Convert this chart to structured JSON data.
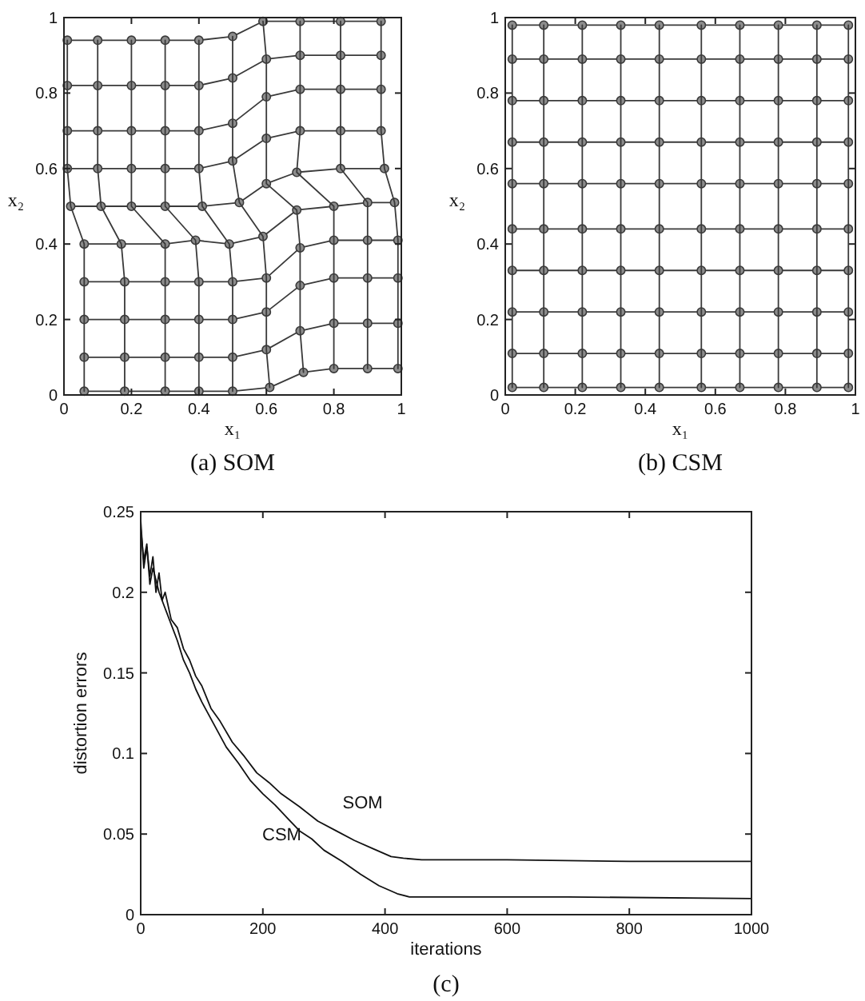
{
  "chart_data": [
    {
      "type": "line",
      "title": "(a) SOM",
      "xlabel": "x₁",
      "ylabel": "x₂",
      "xlim": [
        0,
        1
      ],
      "ylim": [
        0,
        1
      ],
      "xticks": [
        0,
        0.2,
        0.4,
        0.6,
        0.8,
        1
      ],
      "yticks": [
        0,
        0.2,
        0.4,
        0.6,
        0.8,
        1
      ],
      "grid": false,
      "series": [
        {
          "color": "#3a3a3a",
          "marker": "circle",
          "x": [
            0.06,
            0.18,
            0.3,
            0.4,
            0.5,
            0.61,
            0.71,
            0.8,
            0.9,
            0.99
          ],
          "values": [
            0.01,
            0.01,
            0.01,
            0.01,
            0.01,
            0.02,
            0.06,
            0.07,
            0.07,
            0.07
          ]
        },
        {
          "color": "#3a3a3a",
          "marker": "circle",
          "x": [
            0.06,
            0.18,
            0.3,
            0.4,
            0.5,
            0.6,
            0.7,
            0.8,
            0.9,
            0.99
          ],
          "values": [
            0.1,
            0.1,
            0.1,
            0.1,
            0.1,
            0.12,
            0.17,
            0.19,
            0.19,
            0.19
          ]
        },
        {
          "color": "#3a3a3a",
          "marker": "circle",
          "x": [
            0.06,
            0.18,
            0.3,
            0.4,
            0.5,
            0.6,
            0.7,
            0.8,
            0.9,
            0.99
          ],
          "values": [
            0.2,
            0.2,
            0.2,
            0.2,
            0.2,
            0.22,
            0.29,
            0.31,
            0.31,
            0.31
          ]
        },
        {
          "color": "#3a3a3a",
          "marker": "circle",
          "x": [
            0.06,
            0.18,
            0.3,
            0.4,
            0.5,
            0.6,
            0.7,
            0.8,
            0.9,
            0.99
          ],
          "values": [
            0.3,
            0.3,
            0.3,
            0.3,
            0.3,
            0.31,
            0.39,
            0.41,
            0.41,
            0.41
          ]
        },
        {
          "color": "#3a3a3a",
          "marker": "circle",
          "x": [
            0.06,
            0.17,
            0.3,
            0.39,
            0.49,
            0.59,
            0.69,
            0.8,
            0.9,
            0.98
          ],
          "values": [
            0.4,
            0.4,
            0.4,
            0.41,
            0.4,
            0.42,
            0.49,
            0.5,
            0.51,
            0.51
          ]
        },
        {
          "color": "#3a3a3a",
          "marker": "circle",
          "x": [
            0.02,
            0.11,
            0.2,
            0.3,
            0.41,
            0.52,
            0.6,
            0.69,
            0.82,
            0.95
          ],
          "values": [
            0.5,
            0.5,
            0.5,
            0.5,
            0.5,
            0.51,
            0.56,
            0.59,
            0.6,
            0.6
          ]
        },
        {
          "color": "#3a3a3a",
          "marker": "circle",
          "x": [
            0.01,
            0.1,
            0.2,
            0.3,
            0.4,
            0.5,
            0.6,
            0.7,
            0.82,
            0.94
          ],
          "values": [
            0.6,
            0.6,
            0.6,
            0.6,
            0.6,
            0.62,
            0.68,
            0.7,
            0.7,
            0.7
          ]
        },
        {
          "color": "#3a3a3a",
          "marker": "circle",
          "x": [
            0.01,
            0.1,
            0.2,
            0.3,
            0.4,
            0.5,
            0.6,
            0.7,
            0.82,
            0.94
          ],
          "values": [
            0.7,
            0.7,
            0.7,
            0.7,
            0.7,
            0.72,
            0.79,
            0.81,
            0.81,
            0.81
          ]
        },
        {
          "color": "#3a3a3a",
          "marker": "circle",
          "x": [
            0.01,
            0.1,
            0.2,
            0.3,
            0.4,
            0.5,
            0.6,
            0.7,
            0.82,
            0.94
          ],
          "values": [
            0.82,
            0.82,
            0.82,
            0.82,
            0.82,
            0.84,
            0.89,
            0.9,
            0.9,
            0.9
          ]
        },
        {
          "color": "#3a3a3a",
          "marker": "circle",
          "x": [
            0.01,
            0.1,
            0.2,
            0.3,
            0.4,
            0.5,
            0.59,
            0.7,
            0.82,
            0.94
          ],
          "values": [
            0.94,
            0.94,
            0.94,
            0.94,
            0.94,
            0.95,
            0.99,
            0.99,
            0.99,
            0.99
          ]
        },
        {
          "color": "#3a3a3a",
          "marker": "none",
          "x": [
            0.06,
            0.06,
            0.06,
            0.06,
            0.06,
            0.02,
            0.01,
            0.01,
            0.01,
            0.01
          ],
          "values": [
            0.01,
            0.1,
            0.2,
            0.3,
            0.4,
            0.5,
            0.6,
            0.7,
            0.82,
            0.94
          ]
        },
        {
          "color": "#3a3a3a",
          "marker": "none",
          "x": [
            0.18,
            0.18,
            0.18,
            0.18,
            0.17,
            0.11,
            0.1,
            0.1,
            0.1,
            0.1
          ],
          "values": [
            0.01,
            0.1,
            0.2,
            0.3,
            0.4,
            0.5,
            0.6,
            0.7,
            0.82,
            0.94
          ]
        },
        {
          "color": "#3a3a3a",
          "marker": "none",
          "x": [
            0.3,
            0.3,
            0.3,
            0.3,
            0.3,
            0.2,
            0.2,
            0.2,
            0.2,
            0.2
          ],
          "values": [
            0.01,
            0.1,
            0.2,
            0.3,
            0.4,
            0.5,
            0.6,
            0.7,
            0.82,
            0.94
          ]
        },
        {
          "color": "#3a3a3a",
          "marker": "none",
          "x": [
            0.4,
            0.4,
            0.4,
            0.4,
            0.39,
            0.3,
            0.3,
            0.3,
            0.3,
            0.3
          ],
          "values": [
            0.01,
            0.1,
            0.2,
            0.3,
            0.41,
            0.5,
            0.6,
            0.7,
            0.82,
            0.94
          ]
        },
        {
          "color": "#3a3a3a",
          "marker": "none",
          "x": [
            0.5,
            0.5,
            0.5,
            0.5,
            0.49,
            0.41,
            0.4,
            0.4,
            0.4,
            0.4
          ],
          "values": [
            0.01,
            0.1,
            0.2,
            0.3,
            0.4,
            0.5,
            0.6,
            0.7,
            0.82,
            0.94
          ]
        },
        {
          "color": "#3a3a3a",
          "marker": "none",
          "x": [
            0.61,
            0.6,
            0.6,
            0.6,
            0.59,
            0.52,
            0.5,
            0.5,
            0.5,
            0.5
          ],
          "values": [
            0.02,
            0.12,
            0.22,
            0.31,
            0.42,
            0.51,
            0.62,
            0.72,
            0.84,
            0.95
          ]
        },
        {
          "color": "#3a3a3a",
          "marker": "none",
          "x": [
            0.71,
            0.7,
            0.7,
            0.7,
            0.69,
            0.6,
            0.6,
            0.6,
            0.6,
            0.59
          ],
          "values": [
            0.06,
            0.17,
            0.29,
            0.39,
            0.49,
            0.56,
            0.68,
            0.79,
            0.89,
            0.99
          ]
        },
        {
          "color": "#3a3a3a",
          "marker": "none",
          "x": [
            0.8,
            0.8,
            0.8,
            0.8,
            0.8,
            0.69,
            0.7,
            0.7,
            0.7,
            0.7
          ],
          "values": [
            0.07,
            0.19,
            0.31,
            0.41,
            0.5,
            0.59,
            0.7,
            0.81,
            0.9,
            0.99
          ]
        },
        {
          "color": "#3a3a3a",
          "marker": "none",
          "x": [
            0.9,
            0.9,
            0.9,
            0.9,
            0.9,
            0.82,
            0.82,
            0.82,
            0.82,
            0.82
          ],
          "values": [
            0.07,
            0.19,
            0.31,
            0.41,
            0.51,
            0.6,
            0.7,
            0.81,
            0.9,
            0.99
          ]
        },
        {
          "color": "#3a3a3a",
          "marker": "none",
          "x": [
            0.99,
            0.99,
            0.99,
            0.99,
            0.98,
            0.95,
            0.94,
            0.94,
            0.94,
            0.94
          ],
          "values": [
            0.07,
            0.19,
            0.31,
            0.41,
            0.51,
            0.6,
            0.7,
            0.81,
            0.9,
            0.99
          ]
        }
      ]
    },
    {
      "type": "line",
      "title": "(b) CSM",
      "xlabel": "x₁",
      "ylabel": "x₂",
      "xlim": [
        0,
        1
      ],
      "ylim": [
        0,
        1
      ],
      "xticks": [
        0,
        0.2,
        0.4,
        0.6,
        0.8,
        1
      ],
      "yticks": [
        0,
        0.2,
        0.4,
        0.6,
        0.8,
        1
      ],
      "grid": false,
      "series": [
        {
          "color": "#3a3a3a",
          "marker": "circle",
          "x": [
            0.02,
            0.11,
            0.22,
            0.33,
            0.44,
            0.56,
            0.67,
            0.78,
            0.89,
            0.98
          ],
          "values": [
            0.02,
            0.02,
            0.02,
            0.02,
            0.02,
            0.02,
            0.02,
            0.02,
            0.02,
            0.02
          ]
        },
        {
          "color": "#3a3a3a",
          "marker": "circle",
          "x": [
            0.02,
            0.11,
            0.22,
            0.33,
            0.44,
            0.56,
            0.67,
            0.78,
            0.89,
            0.98
          ],
          "values": [
            0.11,
            0.11,
            0.11,
            0.11,
            0.11,
            0.11,
            0.11,
            0.11,
            0.11,
            0.11
          ]
        },
        {
          "color": "#3a3a3a",
          "marker": "circle",
          "x": [
            0.02,
            0.11,
            0.22,
            0.33,
            0.44,
            0.56,
            0.67,
            0.78,
            0.89,
            0.98
          ],
          "values": [
            0.22,
            0.22,
            0.22,
            0.22,
            0.22,
            0.22,
            0.22,
            0.22,
            0.22,
            0.22
          ]
        },
        {
          "color": "#3a3a3a",
          "marker": "circle",
          "x": [
            0.02,
            0.11,
            0.22,
            0.33,
            0.44,
            0.56,
            0.67,
            0.78,
            0.89,
            0.98
          ],
          "values": [
            0.33,
            0.33,
            0.33,
            0.33,
            0.33,
            0.33,
            0.33,
            0.33,
            0.33,
            0.33
          ]
        },
        {
          "color": "#3a3a3a",
          "marker": "circle",
          "x": [
            0.02,
            0.11,
            0.22,
            0.33,
            0.44,
            0.56,
            0.67,
            0.78,
            0.89,
            0.98
          ],
          "values": [
            0.44,
            0.44,
            0.44,
            0.44,
            0.44,
            0.44,
            0.44,
            0.44,
            0.44,
            0.44
          ]
        },
        {
          "color": "#3a3a3a",
          "marker": "circle",
          "x": [
            0.02,
            0.11,
            0.22,
            0.33,
            0.44,
            0.56,
            0.67,
            0.78,
            0.89,
            0.98
          ],
          "values": [
            0.56,
            0.56,
            0.56,
            0.56,
            0.56,
            0.56,
            0.56,
            0.56,
            0.56,
            0.56
          ]
        },
        {
          "color": "#3a3a3a",
          "marker": "circle",
          "x": [
            0.02,
            0.11,
            0.22,
            0.33,
            0.44,
            0.56,
            0.67,
            0.78,
            0.89,
            0.98
          ],
          "values": [
            0.67,
            0.67,
            0.67,
            0.67,
            0.67,
            0.67,
            0.67,
            0.67,
            0.67,
            0.67
          ]
        },
        {
          "color": "#3a3a3a",
          "marker": "circle",
          "x": [
            0.02,
            0.11,
            0.22,
            0.33,
            0.44,
            0.56,
            0.67,
            0.78,
            0.89,
            0.98
          ],
          "values": [
            0.78,
            0.78,
            0.78,
            0.78,
            0.78,
            0.78,
            0.78,
            0.78,
            0.78,
            0.78
          ]
        },
        {
          "color": "#3a3a3a",
          "marker": "circle",
          "x": [
            0.02,
            0.11,
            0.22,
            0.33,
            0.44,
            0.56,
            0.67,
            0.78,
            0.89,
            0.98
          ],
          "values": [
            0.89,
            0.89,
            0.89,
            0.89,
            0.89,
            0.89,
            0.89,
            0.89,
            0.89,
            0.89
          ]
        },
        {
          "color": "#3a3a3a",
          "marker": "circle",
          "x": [
            0.02,
            0.11,
            0.22,
            0.33,
            0.44,
            0.56,
            0.67,
            0.78,
            0.89,
            0.98
          ],
          "values": [
            0.98,
            0.98,
            0.98,
            0.98,
            0.98,
            0.98,
            0.98,
            0.98,
            0.98,
            0.98
          ]
        },
        {
          "color": "#3a3a3a",
          "marker": "none",
          "x": [
            0.02,
            0.02,
            0.02,
            0.02,
            0.02,
            0.02,
            0.02,
            0.02,
            0.02,
            0.02
          ],
          "values": [
            0.02,
            0.11,
            0.22,
            0.33,
            0.44,
            0.56,
            0.67,
            0.78,
            0.89,
            0.98
          ]
        },
        {
          "color": "#3a3a3a",
          "marker": "none",
          "x": [
            0.11,
            0.11,
            0.11,
            0.11,
            0.11,
            0.11,
            0.11,
            0.11,
            0.11,
            0.11
          ],
          "values": [
            0.02,
            0.11,
            0.22,
            0.33,
            0.44,
            0.56,
            0.67,
            0.78,
            0.89,
            0.98
          ]
        },
        {
          "color": "#3a3a3a",
          "marker": "none",
          "x": [
            0.22,
            0.22,
            0.22,
            0.22,
            0.22,
            0.22,
            0.22,
            0.22,
            0.22,
            0.22
          ],
          "values": [
            0.02,
            0.11,
            0.22,
            0.33,
            0.44,
            0.56,
            0.67,
            0.78,
            0.89,
            0.98
          ]
        },
        {
          "color": "#3a3a3a",
          "marker": "none",
          "x": [
            0.33,
            0.33,
            0.33,
            0.33,
            0.33,
            0.33,
            0.33,
            0.33,
            0.33,
            0.33
          ],
          "values": [
            0.02,
            0.11,
            0.22,
            0.33,
            0.44,
            0.56,
            0.67,
            0.78,
            0.89,
            0.98
          ]
        },
        {
          "color": "#3a3a3a",
          "marker": "none",
          "x": [
            0.44,
            0.44,
            0.44,
            0.44,
            0.44,
            0.44,
            0.44,
            0.44,
            0.44,
            0.44
          ],
          "values": [
            0.02,
            0.11,
            0.22,
            0.33,
            0.44,
            0.56,
            0.67,
            0.78,
            0.89,
            0.98
          ]
        },
        {
          "color": "#3a3a3a",
          "marker": "none",
          "x": [
            0.56,
            0.56,
            0.56,
            0.56,
            0.56,
            0.56,
            0.56,
            0.56,
            0.56,
            0.56
          ],
          "values": [
            0.02,
            0.11,
            0.22,
            0.33,
            0.44,
            0.56,
            0.67,
            0.78,
            0.89,
            0.98
          ]
        },
        {
          "color": "#3a3a3a",
          "marker": "none",
          "x": [
            0.67,
            0.67,
            0.67,
            0.67,
            0.67,
            0.67,
            0.67,
            0.67,
            0.67,
            0.67
          ],
          "values": [
            0.02,
            0.11,
            0.22,
            0.33,
            0.44,
            0.56,
            0.67,
            0.78,
            0.89,
            0.98
          ]
        },
        {
          "color": "#3a3a3a",
          "marker": "none",
          "x": [
            0.78,
            0.78,
            0.78,
            0.78,
            0.78,
            0.78,
            0.78,
            0.78,
            0.78,
            0.78
          ],
          "values": [
            0.02,
            0.11,
            0.22,
            0.33,
            0.44,
            0.56,
            0.67,
            0.78,
            0.89,
            0.98
          ]
        },
        {
          "color": "#3a3a3a",
          "marker": "none",
          "x": [
            0.89,
            0.89,
            0.89,
            0.89,
            0.89,
            0.89,
            0.89,
            0.89,
            0.89,
            0.89
          ],
          "values": [
            0.02,
            0.11,
            0.22,
            0.33,
            0.44,
            0.56,
            0.67,
            0.78,
            0.89,
            0.98
          ]
        },
        {
          "color": "#3a3a3a",
          "marker": "none",
          "x": [
            0.98,
            0.98,
            0.98,
            0.98,
            0.98,
            0.98,
            0.98,
            0.98,
            0.98,
            0.98
          ],
          "values": [
            0.02,
            0.11,
            0.22,
            0.33,
            0.44,
            0.56,
            0.67,
            0.78,
            0.89,
            0.98
          ]
        }
      ]
    },
    {
      "type": "line",
      "title": "(c)",
      "xlabel": "iterations",
      "ylabel": "distortion errors",
      "xlim": [
        0,
        1000
      ],
      "ylim": [
        0,
        0.25
      ],
      "xticks": [
        0,
        200,
        400,
        600,
        800,
        1000
      ],
      "yticks": [
        0,
        0.05,
        0.1,
        0.15,
        0.2,
        0.25
      ],
      "grid": false,
      "marker": "none",
      "series": [
        {
          "name": "SOM",
          "color": "#111111",
          "x": [
            0,
            5,
            10,
            15,
            20,
            25,
            30,
            35,
            40,
            50,
            60,
            70,
            80,
            90,
            100,
            115,
            130,
            150,
            170,
            190,
            210,
            230,
            260,
            290,
            320,
            350,
            380,
            410,
            430,
            460,
            600,
            800,
            1000
          ],
          "values": [
            0.245,
            0.215,
            0.228,
            0.21,
            0.222,
            0.2,
            0.212,
            0.195,
            0.2,
            0.183,
            0.178,
            0.165,
            0.158,
            0.148,
            0.142,
            0.128,
            0.12,
            0.107,
            0.098,
            0.088,
            0.082,
            0.075,
            0.067,
            0.058,
            0.052,
            0.046,
            0.041,
            0.036,
            0.035,
            0.034,
            0.034,
            0.033,
            0.033
          ]
        },
        {
          "name": "CSM",
          "color": "#111111",
          "x": [
            0,
            5,
            10,
            15,
            20,
            30,
            40,
            50,
            60,
            70,
            80,
            90,
            100,
            120,
            140,
            160,
            180,
            200,
            220,
            240,
            260,
            280,
            300,
            330,
            360,
            390,
            420,
            440,
            500,
            700,
            1000
          ],
          "values": [
            0.24,
            0.22,
            0.23,
            0.205,
            0.215,
            0.2,
            0.19,
            0.18,
            0.17,
            0.158,
            0.15,
            0.14,
            0.132,
            0.118,
            0.104,
            0.094,
            0.083,
            0.075,
            0.068,
            0.06,
            0.052,
            0.047,
            0.04,
            0.033,
            0.025,
            0.018,
            0.013,
            0.011,
            0.011,
            0.011,
            0.01
          ]
        }
      ]
    }
  ]
}
